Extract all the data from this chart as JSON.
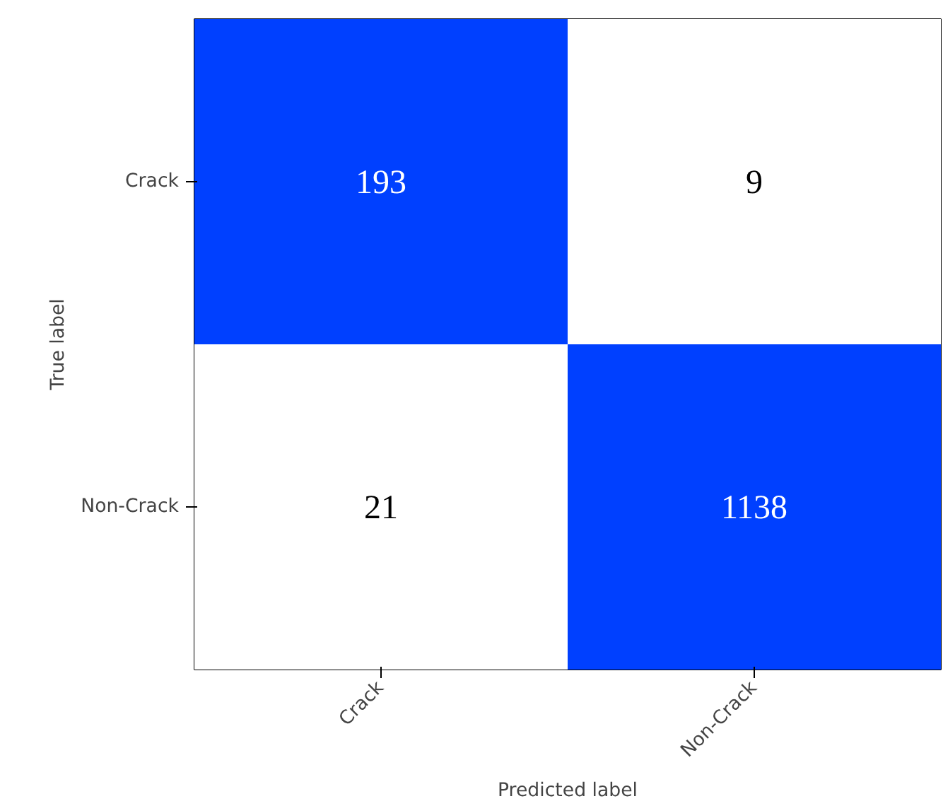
{
  "chart_data": {
    "type": "heatmap",
    "xlabel": "Predicted label",
    "ylabel": "True label",
    "categories": [
      "Crack",
      "Non-Crack"
    ],
    "y_categories": [
      "Crack",
      "Non-Crack"
    ],
    "cells": [
      [
        193,
        9
      ],
      [
        21,
        1138
      ]
    ],
    "colors": [
      [
        "#0040ff",
        "#ffffff"
      ],
      [
        "#ffffff",
        "#0040ff"
      ]
    ],
    "data_labels": true
  }
}
